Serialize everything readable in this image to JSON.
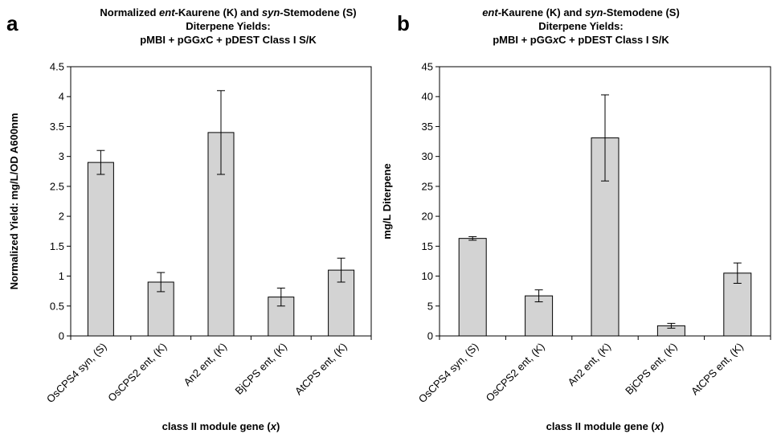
{
  "chart_data": [
    {
      "type": "bar",
      "panel": "a",
      "title": [
        "Normalized |ent|-Kaurene (K) and |syn|-Stemodene (S)",
        "Diterpene Yields:",
        "pMBI + pGG|x|C + pDEST Class I S/K"
      ],
      "ylabel": "Normalized Yield: mg/L/OD A600nm",
      "xlabel": "class II module gene (|x|)",
      "ylim": [
        0,
        4.5
      ],
      "yticks": [
        0,
        0.5,
        1,
        1.5,
        2,
        2.5,
        3,
        3.5,
        4,
        4.5
      ],
      "ytick_labels": [
        "0",
        "0.5",
        "1",
        "1.5",
        "2",
        "2.5",
        "3",
        "3.5",
        "4",
        "4.5"
      ],
      "categories": [
        "OsCPS4 syn, (S)",
        "OsCPS2 ent, (K)",
        "An2 ent, (K)",
        "BjCPS ent, (K)",
        "AtCPS ent, (K)"
      ],
      "values": [
        2.9,
        0.9,
        3.4,
        0.65,
        1.1
      ],
      "errors": [
        0.2,
        0.16,
        0.7,
        0.15,
        0.2
      ],
      "bar_color": "#d3d3d3",
      "grid": false
    },
    {
      "type": "bar",
      "panel": "b",
      "title": [
        "|ent|-Kaurene (K) and |syn|-Stemodene (S)",
        "Diterpene Yields:",
        "pMBI + pGG|x|C + pDEST Class I S/K"
      ],
      "ylabel": "mg/L Diterpene",
      "xlabel": "class II module gene (|x|)",
      "ylim": [
        0,
        45
      ],
      "yticks": [
        0,
        5,
        10,
        15,
        20,
        25,
        30,
        35,
        40,
        45
      ],
      "ytick_labels": [
        "0",
        "5",
        "10",
        "15",
        "20",
        "25",
        "30",
        "35",
        "40",
        "45"
      ],
      "categories": [
        "OsCPS4 syn, (S)",
        "OsCPS2 ent, (K)",
        "An2 ent, (K)",
        "BjCPS ent, (K)",
        "AtCPS ent, (K)"
      ],
      "values": [
        16.3,
        6.7,
        33.1,
        1.7,
        10.5
      ],
      "errors": [
        0.3,
        1.0,
        7.2,
        0.4,
        1.7
      ],
      "bar_color": "#d3d3d3",
      "grid": false
    }
  ]
}
